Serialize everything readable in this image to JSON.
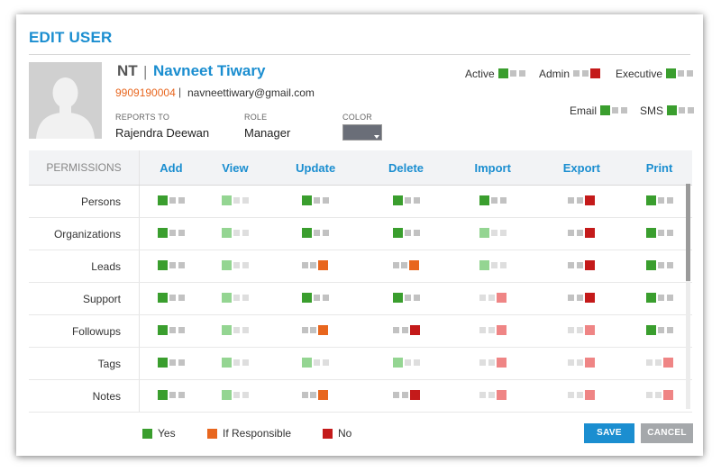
{
  "dialog": {
    "title": "EDIT USER"
  },
  "user": {
    "initials": "NT",
    "separator": "|",
    "full_name": "Navneet Tiwary",
    "phone": "9909190004",
    "email": "navneettiwary@gmail.com",
    "reports_to_label": "REPORTS TO",
    "reports_to": "Rajendra Deewan",
    "role_label": "ROLE",
    "role": "Manager",
    "color_label": "COLOR",
    "color_value": "#6a6e78"
  },
  "flags": {
    "active": {
      "label": "Active",
      "state": "yes"
    },
    "admin": {
      "label": "Admin",
      "state": "no"
    },
    "executive": {
      "label": "Executive",
      "state": "yes"
    },
    "email": {
      "label": "Email",
      "state": "yes"
    },
    "sms": {
      "label": "SMS",
      "state": "yes"
    }
  },
  "permissions": {
    "header": "PERMISSIONS",
    "columns": [
      "Add",
      "View",
      "Update",
      "Delete",
      "Import",
      "Export",
      "Print"
    ],
    "rows": [
      {
        "name": "Persons",
        "values": [
          "yes",
          "yes-light",
          "yes",
          "yes",
          "yes",
          "no",
          "yes"
        ]
      },
      {
        "name": "Organizations",
        "values": [
          "yes",
          "yes-light",
          "yes",
          "yes",
          "yes-light",
          "no",
          "yes"
        ]
      },
      {
        "name": "Leads",
        "values": [
          "yes",
          "yes-light",
          "resp",
          "resp",
          "yes-light",
          "no",
          "yes"
        ]
      },
      {
        "name": "Support",
        "values": [
          "yes",
          "yes-light",
          "yes",
          "yes",
          "no-light",
          "no",
          "yes"
        ]
      },
      {
        "name": "Followups",
        "values": [
          "yes",
          "yes-light",
          "resp",
          "no",
          "no-light",
          "no-light",
          "yes"
        ]
      },
      {
        "name": "Tags",
        "values": [
          "yes",
          "yes-light",
          "yes-light",
          "yes-light",
          "no-light",
          "no-light",
          "no-light"
        ]
      },
      {
        "name": "Notes",
        "values": [
          "yes",
          "yes-light",
          "resp",
          "no",
          "no-light",
          "no-light",
          "no-light"
        ]
      }
    ]
  },
  "legend": {
    "yes": "Yes",
    "resp": "If Responsible",
    "no": "No"
  },
  "colors": {
    "accent": "#1b8ed0",
    "yes": "#3a9e2e",
    "resp": "#e8661e",
    "no": "#c41a1a"
  },
  "buttons": {
    "save": "SAVE",
    "cancel": "CANCEL"
  }
}
